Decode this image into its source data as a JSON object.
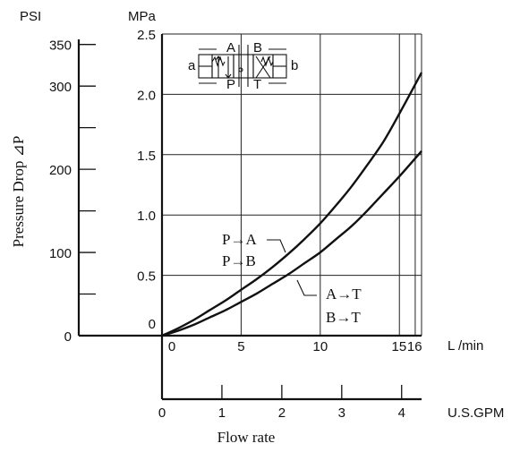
{
  "chart_data": {
    "type": "line",
    "title": "",
    "xlabel": "Flow rate",
    "ylabel": "Pressure Drop ⊿P",
    "x_unit_primary": "L /min",
    "x_unit_secondary": "U.S.GPM",
    "y_unit_primary": "MPa",
    "y_unit_secondary": "PSI",
    "xlim": [
      0,
      16.4
    ],
    "ylim": [
      0,
      2.5
    ],
    "x_ticks_lpm": [
      "0",
      "5",
      "10",
      "15",
      "16"
    ],
    "x_ticks_gpm": [
      "0",
      "1",
      "2",
      "3",
      "4"
    ],
    "y_ticks_mpa": [
      "0",
      "0.5",
      "1.0",
      "1.5",
      "2.0",
      "2.5"
    ],
    "y_ticks_psi": [
      "0",
      "100",
      "200",
      "300",
      "350"
    ],
    "grid": true,
    "series": [
      {
        "name": "P→A / P→B",
        "label_lines": [
          "P→A",
          "P→B"
        ],
        "x": [
          0,
          1,
          2,
          3,
          4,
          5,
          6,
          7,
          8,
          9,
          10,
          11,
          12,
          13,
          14,
          15,
          16.4
        ],
        "y": [
          0,
          0.06,
          0.13,
          0.21,
          0.29,
          0.38,
          0.47,
          0.57,
          0.68,
          0.8,
          0.93,
          1.08,
          1.24,
          1.42,
          1.61,
          1.84,
          2.18
        ]
      },
      {
        "name": "A→T / B→T",
        "label_lines": [
          "A→T",
          "B→T"
        ],
        "x": [
          0,
          1,
          2,
          3,
          4,
          5,
          6,
          7,
          8,
          9,
          10,
          11,
          12,
          13,
          14,
          15,
          16.4
        ],
        "y": [
          0,
          0.04,
          0.09,
          0.15,
          0.21,
          0.28,
          0.35,
          0.43,
          0.51,
          0.6,
          0.69,
          0.8,
          0.91,
          1.04,
          1.18,
          1.32,
          1.53
        ]
      }
    ],
    "valve_symbol": {
      "port_labels": [
        "A",
        "B",
        "P",
        "T"
      ],
      "side_labels": [
        "a",
        "b"
      ]
    }
  }
}
